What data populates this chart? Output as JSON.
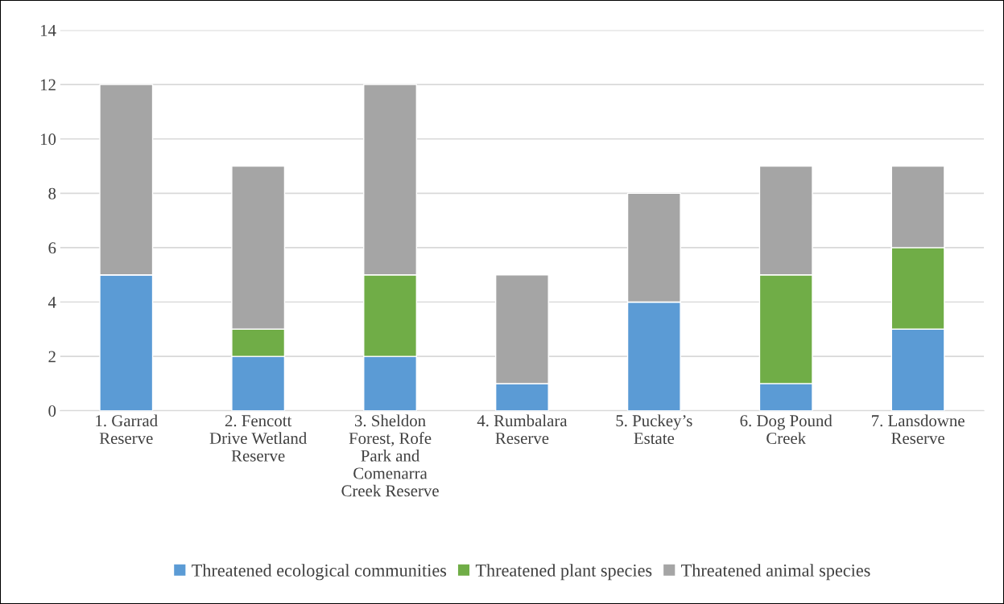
{
  "chart_data": {
    "type": "bar",
    "stacked": true,
    "categories": [
      "1. Garrad Reserve",
      "2. Fencott Drive Wetland Reserve",
      "3. Sheldon Forest, Rofe Park and Comenarra Creek Reserve",
      "4. Rumbalara Reserve",
      "5. Puckey’s Estate",
      "6. Dog Pound Creek",
      "7. Lansdowne Reserve"
    ],
    "series": [
      {
        "name": "Threatened ecological communities",
        "color": "#5b9bd5",
        "values": [
          5,
          2,
          2,
          1,
          4,
          1,
          3
        ]
      },
      {
        "name": "Threatened plant species",
        "color": "#70ad47",
        "values": [
          0,
          1,
          3,
          0,
          0,
          4,
          3
        ]
      },
      {
        "name": "Threatened animal species",
        "color": "#a5a5a5",
        "values": [
          7,
          6,
          7,
          4,
          4,
          4,
          3
        ]
      }
    ],
    "ylim": [
      0,
      14
    ],
    "yticks": [
      0,
      2,
      4,
      6,
      8,
      10,
      12,
      14
    ],
    "grid": "y",
    "legend": "bottom"
  }
}
